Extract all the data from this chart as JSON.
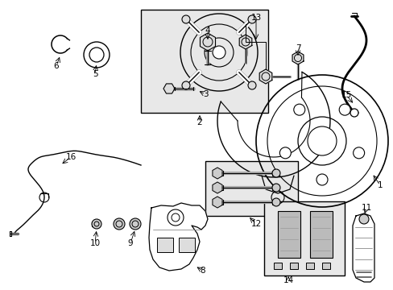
{
  "bg_color": "#ffffff",
  "line_color": "#000000",
  "fig_width": 4.89,
  "fig_height": 3.6,
  "dpi": 100,
  "gray_fill": "#e8e8e8",
  "mid_gray": "#cccccc"
}
